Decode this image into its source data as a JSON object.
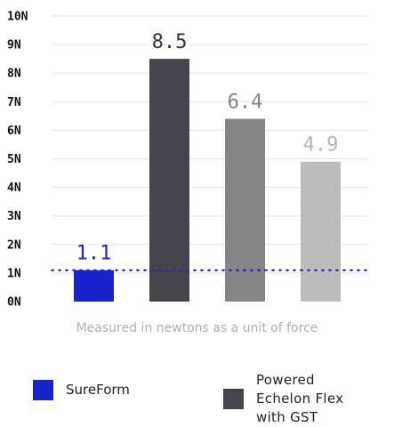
{
  "chart_data": {
    "type": "bar",
    "y_ticks": [
      "0N",
      "1N",
      "2N",
      "3N",
      "4N",
      "5N",
      "6N",
      "7N",
      "8N",
      "9N",
      "10N"
    ],
    "ylim": [
      0,
      10
    ],
    "grid": true,
    "bars": [
      {
        "value": 1.1,
        "label": "1.1",
        "color": "#1a22cc",
        "label_color": "#1a22cc"
      },
      {
        "value": 8.5,
        "label": "8.5",
        "color": "#45444c",
        "label_color": "#333333"
      },
      {
        "value": 6.4,
        "label": "6.4",
        "color": "#858585",
        "label_color": "#858585"
      },
      {
        "value": 4.9,
        "label": "4.9",
        "color": "#bcbcbc",
        "label_color": "#b5b5b5"
      }
    ],
    "reference_line": {
      "value": 1.1,
      "color": "#1a22cc",
      "style": "dotted"
    },
    "xlabel": "Measured in newtons as a unit of force"
  },
  "legend": [
    {
      "label": "SureForm",
      "color": "#1a22cc"
    },
    {
      "label": "Powered Echelon Flex with GST",
      "color": "#45444c"
    }
  ],
  "colors": {
    "gridline": "#e5e5e5",
    "tick_text": "#111111",
    "caption_text": "#b0b0b0"
  }
}
